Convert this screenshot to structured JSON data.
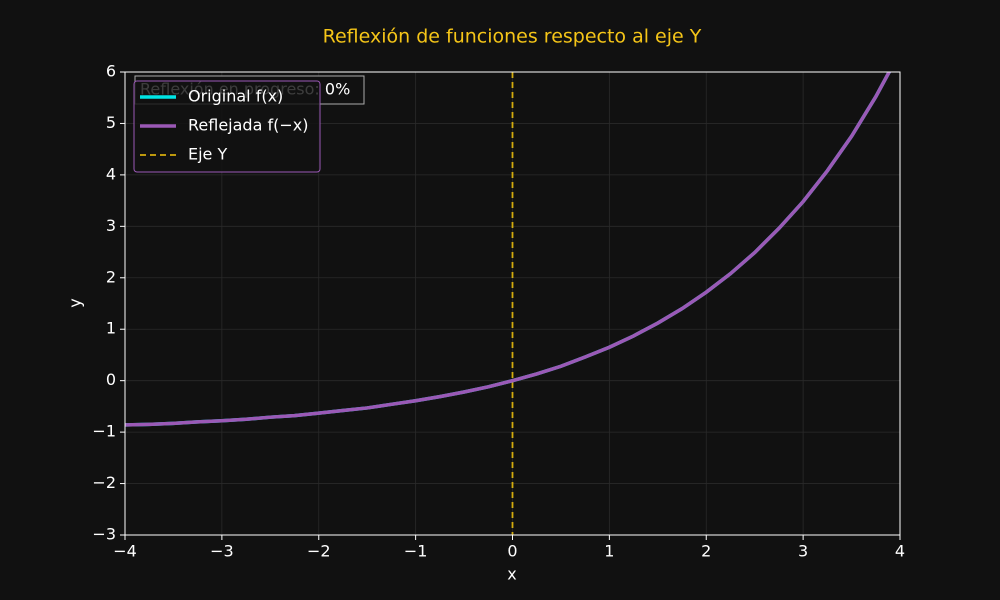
{
  "chart_data": {
    "type": "line",
    "title": "Reflexión de funciones respecto al eje Y",
    "xlabel": "x",
    "ylabel": "y",
    "annotation": "Reflexión en progreso: 0%",
    "x": [
      -4,
      -3.75,
      -3.5,
      -3.25,
      -3,
      -2.75,
      -2.5,
      -2.25,
      -2,
      -1.75,
      -1.5,
      -1.25,
      -1,
      -0.75,
      -0.5,
      -0.25,
      0,
      0.25,
      0.5,
      0.75,
      1,
      1.25,
      1.5,
      1.75,
      2,
      2.25,
      2.5,
      2.75,
      3,
      3.25,
      3.5,
      3.75,
      4
    ],
    "series": [
      {
        "name": "Original f(x)",
        "color": "#00e5e5",
        "values": [
          -0.86,
          -0.85,
          -0.83,
          -0.8,
          -0.78,
          -0.75,
          -0.71,
          -0.68,
          -0.63,
          -0.58,
          -0.53,
          -0.46,
          -0.39,
          -0.31,
          -0.22,
          -0.12,
          0,
          0.13,
          0.28,
          0.46,
          0.65,
          0.87,
          1.12,
          1.4,
          1.72,
          2.08,
          2.49,
          2.96,
          3.48,
          4.08,
          4.75,
          5.52,
          6.39
        ]
      },
      {
        "name": "Reflejada f(−x)",
        "color": "#9b59b6",
        "values": [
          -0.86,
          -0.85,
          -0.83,
          -0.8,
          -0.78,
          -0.75,
          -0.71,
          -0.68,
          -0.63,
          -0.58,
          -0.53,
          -0.46,
          -0.39,
          -0.31,
          -0.22,
          -0.12,
          0,
          0.13,
          0.28,
          0.46,
          0.65,
          0.87,
          1.12,
          1.4,
          1.72,
          2.08,
          2.49,
          2.96,
          3.48,
          4.08,
          4.75,
          5.52,
          6.39
        ]
      }
    ],
    "vlines": [
      {
        "name": "Eje Y",
        "x": 0,
        "color": "#d4ac0d"
      }
    ],
    "xlim": [
      -4,
      4
    ],
    "ylim": [
      -3,
      6
    ],
    "xticks": [
      {
        "value": -4,
        "label": "−4"
      },
      {
        "value": -3,
        "label": "−3"
      },
      {
        "value": -2,
        "label": "−2"
      },
      {
        "value": -1,
        "label": "−1"
      },
      0,
      1,
      2,
      3,
      4
    ],
    "yticks": [
      {
        "value": -3,
        "label": "−3"
      },
      {
        "value": -2,
        "label": "−2"
      },
      {
        "value": -1,
        "label": "−1"
      },
      0,
      1,
      2,
      3,
      4,
      5,
      6
    ],
    "grid": true,
    "legend": "upper left"
  }
}
